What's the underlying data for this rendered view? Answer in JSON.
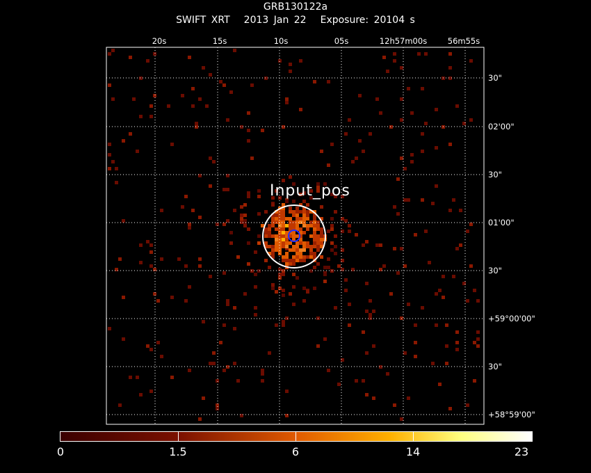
{
  "header": {
    "object": "GRB130122a",
    "instrument": "SWIFT XRT",
    "date": "2013 Jan 22",
    "exposure": "Exposure: 20104 s"
  },
  "ra_labels": [
    "20s",
    "15s",
    "10s",
    "05s",
    "12h57m00s",
    "56m55s"
  ],
  "dec_labels": [
    "30\"",
    "02'00\"",
    "30\"",
    "01'00\"",
    "30\"",
    "+59°00'00\"",
    "30\"",
    "+58°59'00\""
  ],
  "source_marker": {
    "label": "Input_pos",
    "circle_color": "#ffffff",
    "center_color": "#2030ff"
  },
  "colorbar": {
    "labels": [
      "0",
      "1.5",
      "6",
      "14",
      "23"
    ],
    "colors": [
      "#3a0000",
      "#7a1000",
      "#e05a00",
      "#ffb000",
      "#ffff80",
      "#ffffff"
    ]
  }
}
